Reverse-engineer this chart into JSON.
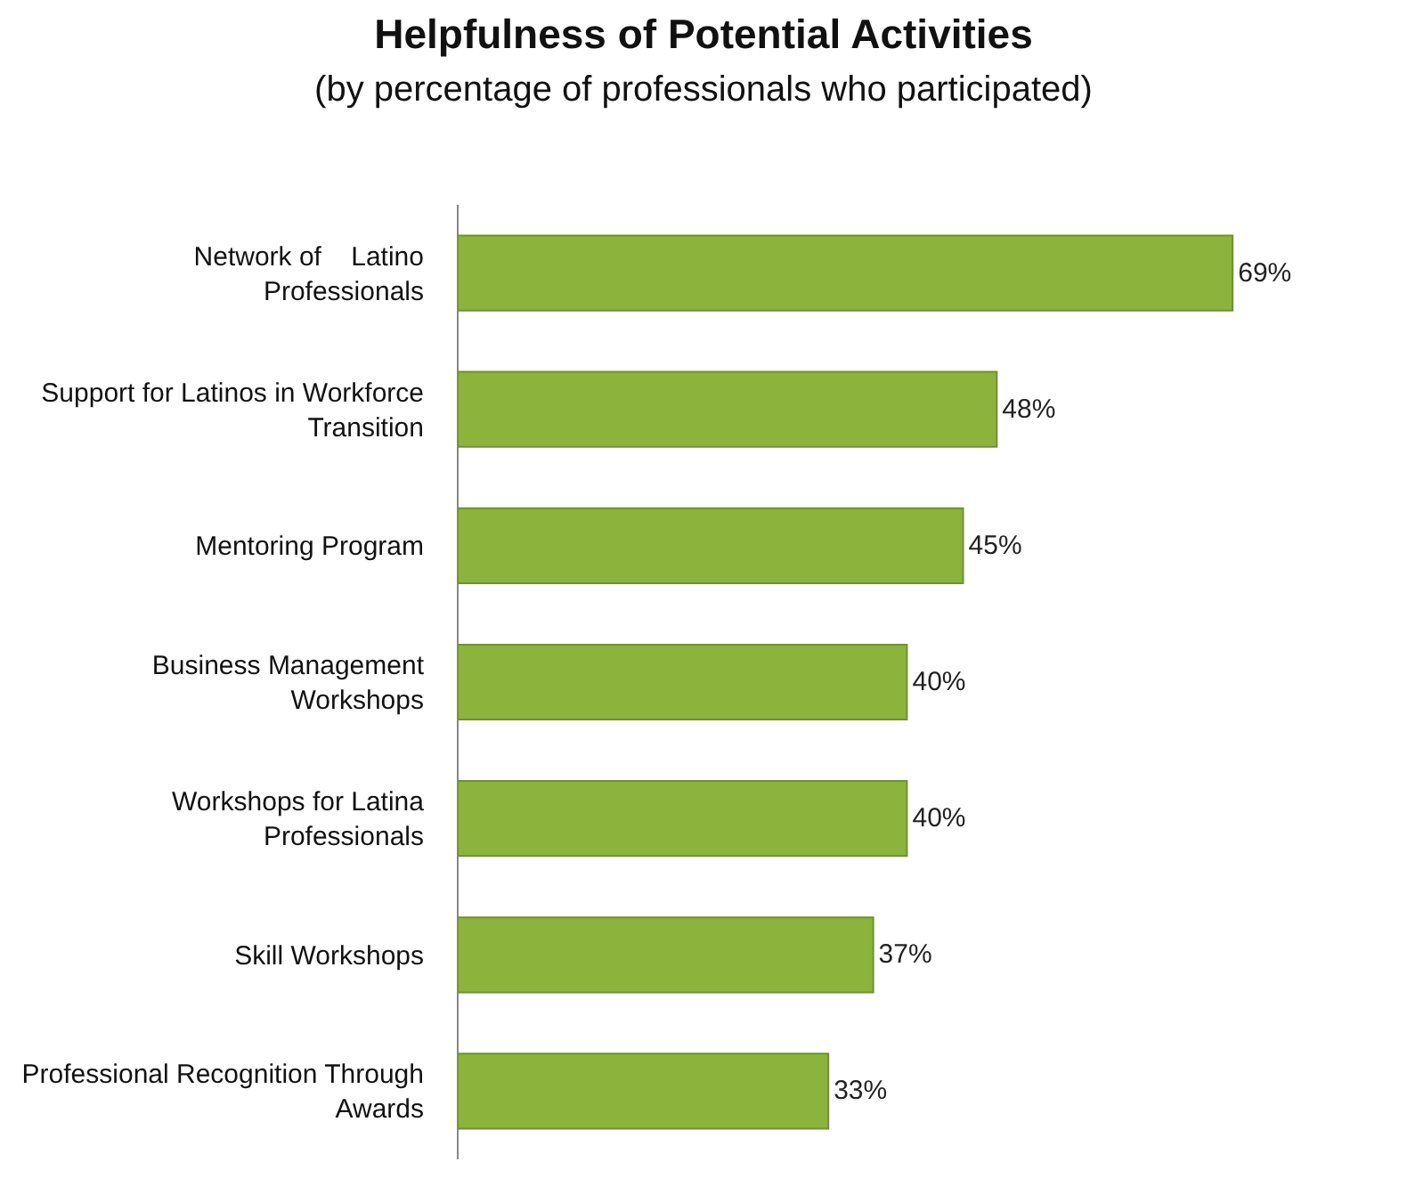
{
  "chart_data": {
    "type": "bar",
    "orientation": "horizontal",
    "title": "Helpfulness of Potential Activities",
    "subtitle": "(by percentage of professionals who participated)",
    "categories": [
      "Network of    Latino\nProfessionals",
      "Support for Latinos in Workforce\nTransition",
      "Mentoring Program",
      "Business Management\nWorkshops",
      "Workshops for Latina\nProfessionals",
      "Skill Workshops",
      "Professional Recognition Through\nAwards"
    ],
    "values": [
      69,
      48,
      45,
      40,
      40,
      37,
      33
    ],
    "value_labels": [
      "69%",
      "48%",
      "45%",
      "40%",
      "40%",
      "37%",
      "33%"
    ],
    "color": "#8cb43c"
  }
}
